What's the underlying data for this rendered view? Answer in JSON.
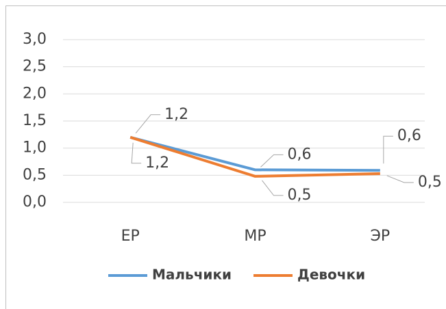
{
  "chart_data": {
    "type": "line",
    "categories": [
      "ЕР",
      "МР",
      "ЭР"
    ],
    "series": [
      {
        "name": "Мальчики",
        "color": "#5b9bd5",
        "values": [
          1.2,
          0.6,
          0.59
        ],
        "value_labels": [
          "1,2",
          "0,6",
          "0,6"
        ]
      },
      {
        "name": "Девочки",
        "color": "#ed7d31",
        "values": [
          1.2,
          0.48,
          0.53
        ],
        "value_labels": [
          "1,2",
          "0,5",
          "0,5"
        ]
      }
    ],
    "ylim": [
      0,
      3
    ],
    "yticks": [
      {
        "value": 0,
        "label": "0,0"
      },
      {
        "value": 0.5,
        "label": "0,5"
      },
      {
        "value": 1,
        "label": "1,0"
      },
      {
        "value": 1.5,
        "label": "1,5"
      },
      {
        "value": 2,
        "label": "2,0"
      },
      {
        "value": 2.5,
        "label": "2,5"
      },
      {
        "value": 3,
        "label": "3,0"
      }
    ],
    "grid": true,
    "legend": "bottom"
  }
}
